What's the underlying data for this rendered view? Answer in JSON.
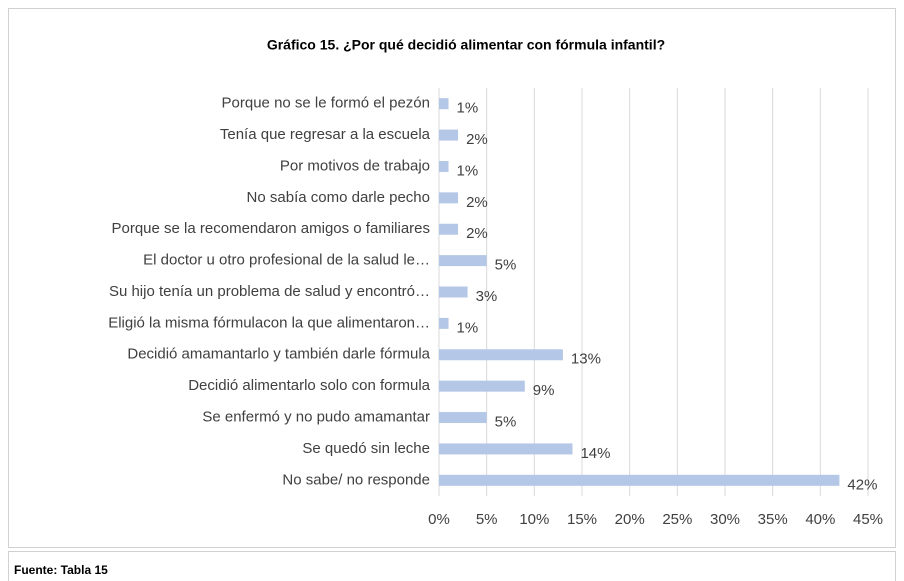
{
  "chart_data": {
    "type": "barh",
    "title": "Gráfico 15. ¿Por qué decidió alimentar con fórmula infantil?",
    "categories": [
      "Porque no se le formó el pezón",
      "Tenía que regresar a la escuela",
      "Por motivos de trabajo",
      "No sabía como darle pecho",
      "Porque se la recomendaron amigos o familiares",
      "El doctor u otro profesional de la salud le…",
      "Su hijo tenía un problema de salud y encontró…",
      "Eligió la misma fórmulacon la que alimentaron…",
      "Decidió amamantarlo y también darle fórmula",
      "Decidió alimentarlo solo con formula",
      "Se enfermó y no pudo amamantar",
      "Se quedó sin leche",
      "No sabe/ no responde"
    ],
    "values": [
      1,
      2,
      1,
      2,
      2,
      5,
      3,
      1,
      13,
      9,
      5,
      14,
      42
    ],
    "value_labels": [
      "1%",
      "2%",
      "1%",
      "2%",
      "2%",
      "5%",
      "3%",
      "1%",
      "13%",
      "9%",
      "5%",
      "14%",
      "42%"
    ],
    "color": "#b4c7e7",
    "xlim": [
      0,
      45
    ],
    "xticks": [
      {
        "value": 0,
        "label": "0%"
      },
      {
        "value": 5,
        "label": "5%"
      },
      {
        "value": 10,
        "label": "10%"
      },
      {
        "value": 15,
        "label": "15%"
      },
      {
        "value": 20,
        "label": "20%"
      },
      {
        "value": 25,
        "label": "25%"
      },
      {
        "value": 30,
        "label": "30%"
      },
      {
        "value": 35,
        "label": "35%"
      },
      {
        "value": 40,
        "label": "40%"
      },
      {
        "value": 45,
        "label": "45%"
      }
    ],
    "grid": true
  },
  "footer": "Fuente: Tabla 15"
}
